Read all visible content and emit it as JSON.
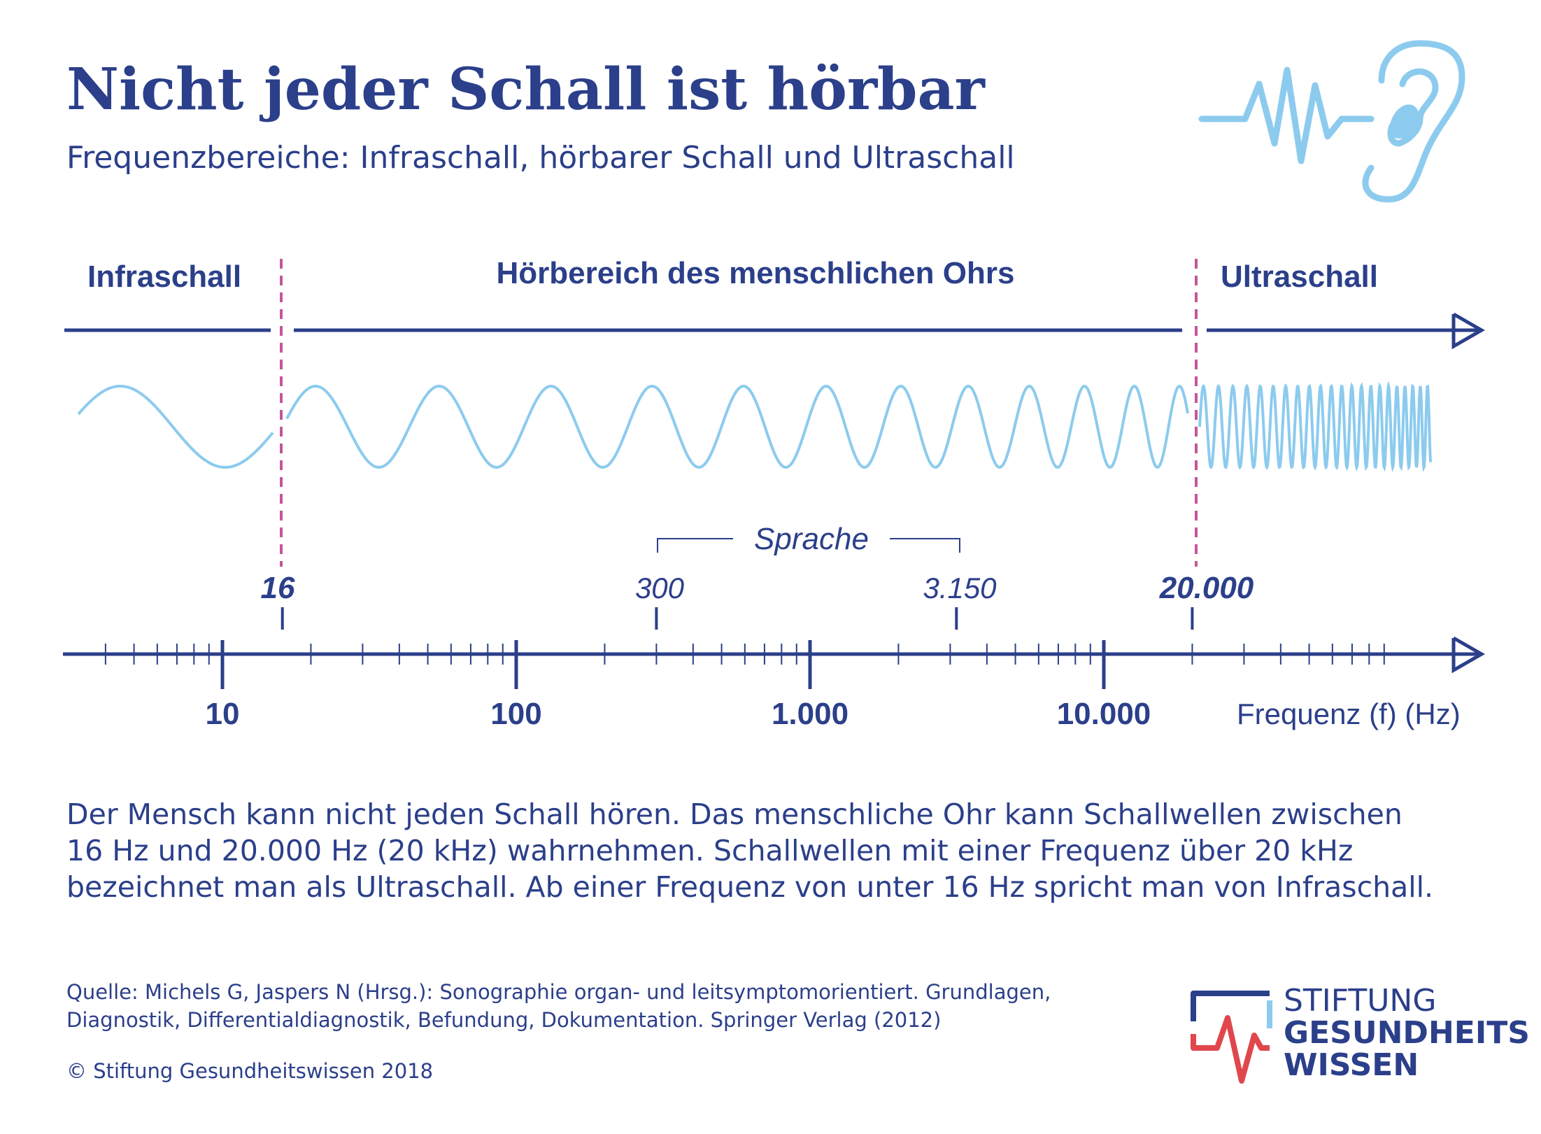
{
  "header": {
    "title": "Nicht jeder Schall ist hörbar",
    "subtitle": "Frequenzbereiche: Infraschall, hörbarer Schall und Ultraschall"
  },
  "icons": {
    "ear": "ear-soundwave-icon",
    "logo": "heartbeat-logo-icon"
  },
  "colors": {
    "primary": "#2b3f8a",
    "wave": "#8ccbee",
    "boundary": "#c4569a",
    "logo_red": "#e0474c",
    "logo_blue": "#8ccbee"
  },
  "ranges": {
    "infra_label": "Infraschall",
    "audible_label": "Hörbereich des menschlichen Ohrs",
    "ultra_label": "Ultraschall"
  },
  "speech": {
    "label": "Sprache",
    "low": "300",
    "high": "3.150",
    "low_hz": 300,
    "high_hz": 3150
  },
  "boundaries": {
    "low": "16",
    "high": "20.000",
    "low_hz": 16,
    "high_hz": 20000
  },
  "axis": {
    "scale": "log",
    "range_hz": [
      4,
      100000
    ],
    "ticks": [
      "10",
      "100",
      "1.000",
      "10.000"
    ],
    "tick_values_hz": [
      10,
      100,
      1000,
      10000
    ],
    "label": "Frequenz (f) (Hz)"
  },
  "body_text": [
    "Der Mensch kann nicht jeden Schall hören. Das menschliche Ohr kann Schallwellen zwischen",
    "16 Hz und 20.000 Hz (20 kHz) wahrnehmen. Schallwellen mit einer Frequenz über 20 kHz",
    "bezeichnet man als Ultraschall. Ab einer Frequenz von unter 16 Hz spricht man von Infraschall."
  ],
  "source": [
    "Quelle: Michels G, Jaspers N (Hrsg.): Sonographie organ- und leitsymptomorientiert. Grundlagen,",
    "Diagnostik, Differentialdiagnostik, Befundung, Dokumentation. Springer Verlag (2012)"
  ],
  "copyright": "© Stiftung Gesundheitswissen 2018",
  "logo": {
    "line1": "STIFTUNG",
    "line2": "GESUNDHEITS",
    "line3": "WISSEN"
  }
}
